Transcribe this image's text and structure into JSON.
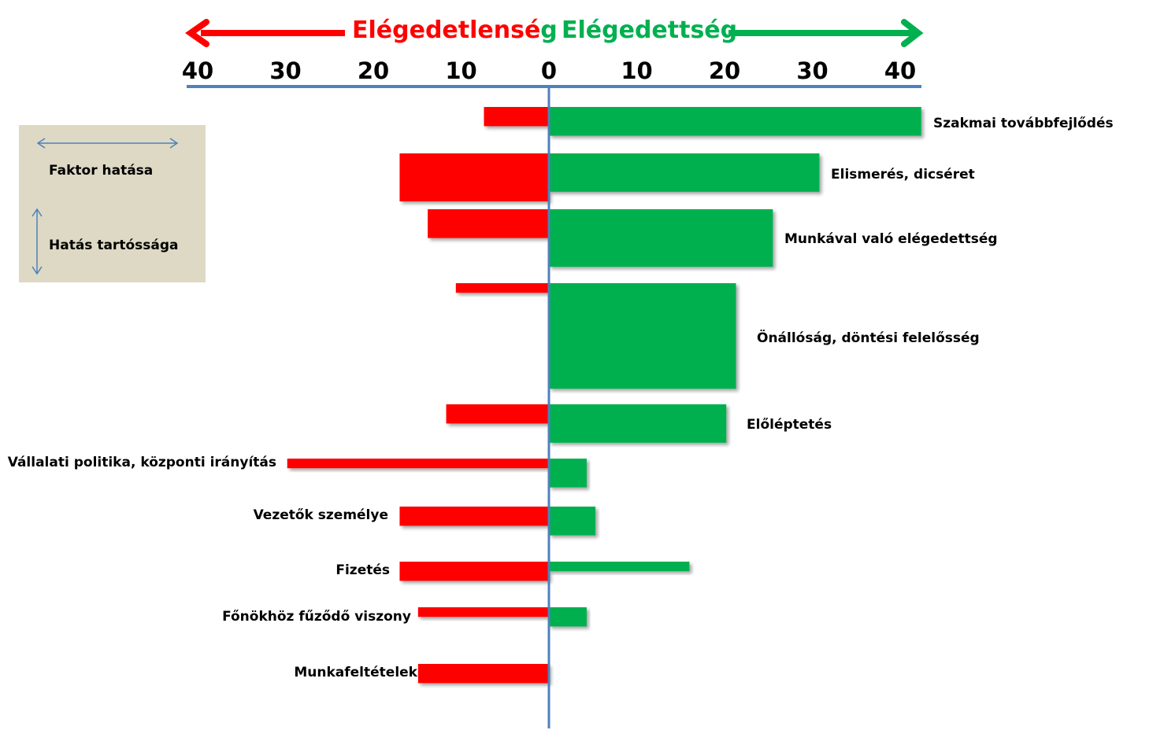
{
  "colors": {
    "dissatisfaction": "#ff0000",
    "satisfaction": "#00b050",
    "axis": "#4f81bd",
    "legend_bg": "#ddd9c4",
    "legend_arrow": "#4f81bd"
  },
  "header": {
    "left_word": "Elégedetlensé",
    "left_tail": "g",
    "right_word": "Elégedettség"
  },
  "legend": {
    "impact_label": "Faktor hatása",
    "duration_label": "Hatás tartóssága"
  },
  "chart_data": {
    "type": "bar",
    "orientation": "diverging-horizontal",
    "xlim": [
      -42,
      42
    ],
    "tick_labels": [
      "40",
      "30",
      "20",
      "10",
      "0",
      "10",
      "20",
      "30",
      "40"
    ],
    "tick_values": [
      -40,
      -30,
      -20,
      -10,
      0,
      10,
      20,
      30,
      40
    ],
    "encoding_note_hidden": "",
    "series": [
      {
        "name": "Elégedetlenség",
        "side": "left"
      },
      {
        "name": "Elégedettség",
        "side": "right"
      }
    ],
    "factors": [
      {
        "label": "Szakmai továbbfejlődés",
        "dissatisfaction": 7.4,
        "satisfaction": 42.4,
        "dis_duration": 2.0,
        "sat_duration": 3.0,
        "label_side": "right"
      },
      {
        "label": "Elismerés, dicséret",
        "dissatisfaction": 17.0,
        "satisfaction": 30.8,
        "dis_duration": 5.0,
        "sat_duration": 4.0,
        "label_side": "right"
      },
      {
        "label": "Munkával való elégedettség",
        "dissatisfaction": 13.8,
        "satisfaction": 25.5,
        "dis_duration": 3.0,
        "sat_duration": 6.0,
        "label_side": "right"
      },
      {
        "label": "Önállóság, döntési felelősség",
        "dissatisfaction": 10.6,
        "satisfaction": 21.3,
        "dis_duration": 1.0,
        "sat_duration": 11.0,
        "label_side": "right"
      },
      {
        "label": "Előléptetés",
        "dissatisfaction": 11.7,
        "satisfaction": 20.2,
        "dis_duration": 2.0,
        "sat_duration": 4.0,
        "label_side": "right"
      },
      {
        "label": "Vállalati politika, központi irányítás",
        "dissatisfaction": 29.8,
        "satisfaction": 4.3,
        "dis_duration": 1.0,
        "sat_duration": 3.0,
        "label_side": "left"
      },
      {
        "label": "Vezetők személye",
        "dissatisfaction": 17.0,
        "satisfaction": 5.3,
        "dis_duration": 2.0,
        "sat_duration": 3.0,
        "label_side": "left"
      },
      {
        "label": "Fizetés",
        "dissatisfaction": 17.0,
        "satisfaction": 16.0,
        "dis_duration": 2.0,
        "sat_duration": 1.0,
        "label_side": "left"
      },
      {
        "label": "Főnökhöz fűződő viszony",
        "dissatisfaction": 14.9,
        "satisfaction": 4.3,
        "dis_duration": 1.0,
        "sat_duration": 2.0,
        "label_side": "left"
      },
      {
        "label": "Munkafeltételek",
        "dissatisfaction": 14.9,
        "satisfaction": 0,
        "dis_duration": 2.0,
        "sat_duration": 0,
        "label_side": "left"
      }
    ]
  }
}
